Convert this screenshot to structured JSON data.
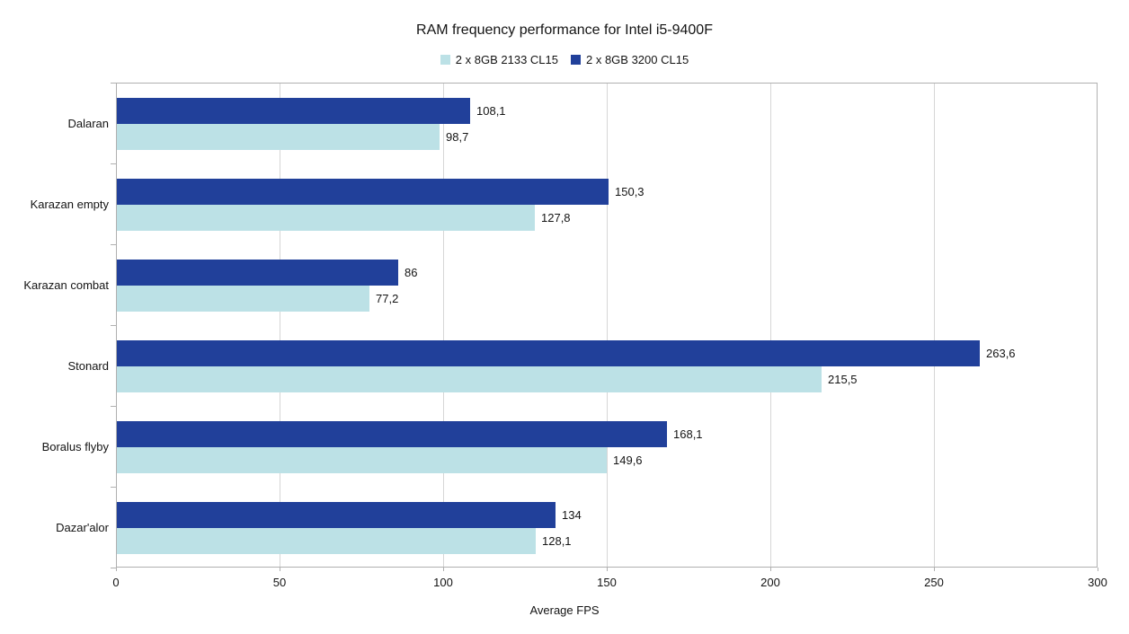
{
  "chart_data": {
    "type": "bar",
    "orientation": "horizontal",
    "title": "RAM frequency performance for Intel i5-9400F",
    "xlabel": "Average FPS",
    "xlim": [
      0,
      300
    ],
    "xticks": [
      0,
      50,
      100,
      150,
      200,
      250,
      300
    ],
    "grid": true,
    "legend_position": "top",
    "categories": [
      "Dalaran",
      "Karazan empty",
      "Karazan combat",
      "Stonard",
      "Boralus flyby",
      "Dazar'alor"
    ],
    "series": [
      {
        "name": "2 x 8GB 2133 CL15",
        "color": "#BCE1E6",
        "values": [
          98.7,
          127.8,
          77.2,
          215.5,
          149.6,
          128.1
        ],
        "value_labels": [
          "98,7",
          "127,8",
          "77,2",
          "215,5",
          "149,6",
          "128,1"
        ]
      },
      {
        "name": "2 x 8GB 3200 CL15",
        "color": "#21409A",
        "values": [
          108.1,
          150.3,
          86,
          263.6,
          168.1,
          134
        ],
        "value_labels": [
          "108,1",
          "150,3",
          "86",
          "263,6",
          "168,1",
          "134"
        ]
      }
    ],
    "colors": {
      "gridline": "#d6d6d6",
      "axis": "#b0b0b0",
      "text": "#141414"
    }
  }
}
